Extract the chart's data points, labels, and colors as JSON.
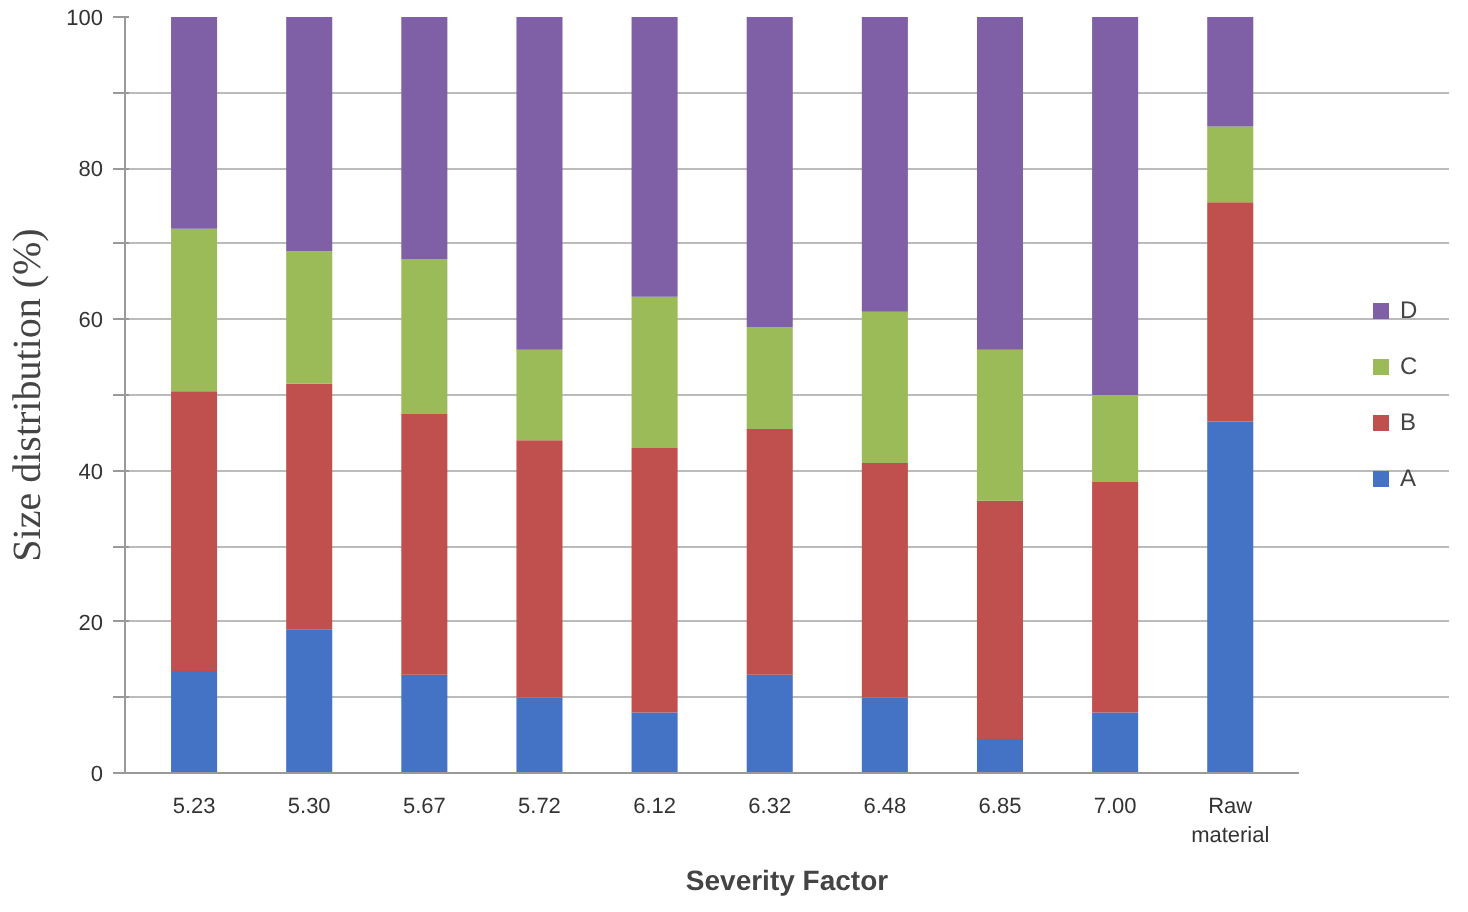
{
  "chart_data": {
    "type": "bar",
    "stacked": true,
    "xlabel": "Severity Factor",
    "ylabel": "Size distribution (%)",
    "categories": [
      "5.23",
      "5.30",
      "5.67",
      "5.72",
      "6.12",
      "6.32",
      "6.48",
      "6.85",
      "7.00",
      "Raw material"
    ],
    "series": [
      {
        "name": "A",
        "color": "#4472c4",
        "values": [
          13.5,
          19,
          13,
          10,
          8,
          13,
          10,
          4.5,
          8,
          46.5
        ]
      },
      {
        "name": "B",
        "color": "#c0504d",
        "values": [
          37,
          32.5,
          34.5,
          34,
          35,
          32.5,
          31,
          31.5,
          30.5,
          29
        ]
      },
      {
        "name": "C",
        "color": "#9bbb59",
        "values": [
          21.5,
          17.5,
          20.5,
          12,
          20,
          13.5,
          20,
          20,
          11.5,
          10
        ]
      },
      {
        "name": "D",
        "color": "#7f5fa5",
        "values": [
          28,
          31,
          32,
          44,
          37,
          41,
          39,
          44,
          50,
          14.5
        ]
      }
    ],
    "ylim": [
      0,
      100
    ],
    "yticks": [
      0,
      {
        "value": 10,
        "label": null
      },
      20,
      {
        "value": 30,
        "label": null
      },
      40,
      {
        "value": 50,
        "label": null
      },
      60,
      {
        "value": 70,
        "label": null
      },
      80,
      {
        "value": 90,
        "label": null
      },
      100
    ],
    "grid": "y",
    "legend": "right"
  }
}
